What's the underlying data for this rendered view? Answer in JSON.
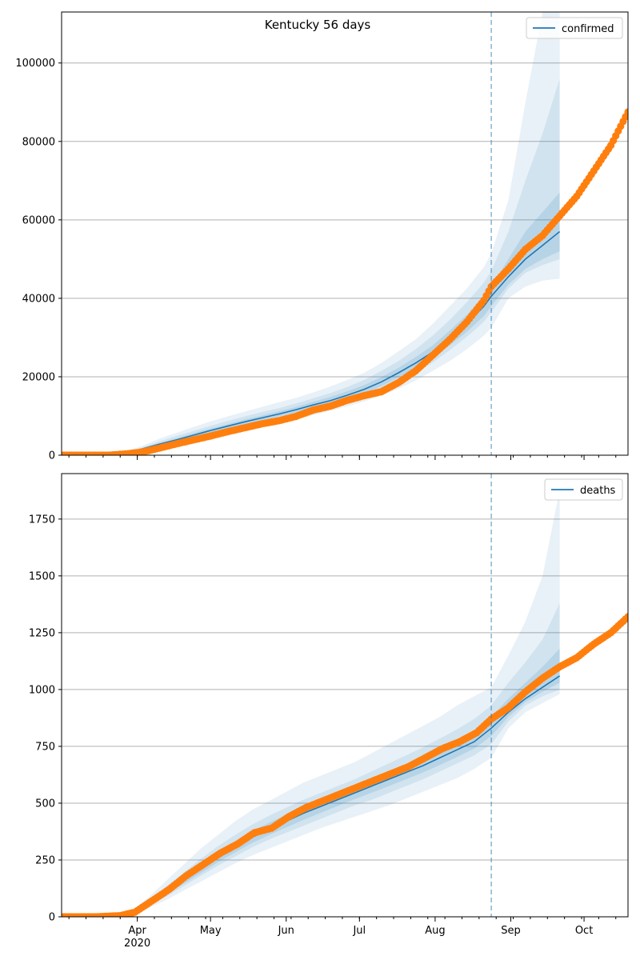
{
  "figure": {
    "title": "Kentucky 56 days"
  },
  "chart_data": [
    {
      "type": "line",
      "panel": "top",
      "ylim": [
        0,
        113000
      ],
      "yticks": [
        0,
        20000,
        40000,
        60000,
        80000,
        100000
      ],
      "grid": "horizontal",
      "legend": {
        "placement": "top-right",
        "label": "confirmed"
      },
      "series_colors": {
        "model": "#1f77b4",
        "observed": "#ff7f0e"
      },
      "vline_date": "2020-08-24",
      "x_range": [
        "2020-03-01",
        "2020-10-19"
      ],
      "x_tick_labels": [
        "Apr",
        "May",
        "Jun",
        "Jul",
        "Aug",
        "Sep",
        "Oct"
      ],
      "x_tick_dates": [
        "2020-04-01",
        "2020-05-01",
        "2020-06-01",
        "2020-07-01",
        "2020-08-01",
        "2020-09-01",
        "2020-10-01"
      ],
      "x_year_label": "2020",
      "model": {
        "x": [
          "2020-03-20",
          "2020-03-27",
          "2020-04-03",
          "2020-04-10",
          "2020-04-17",
          "2020-04-24",
          "2020-05-01",
          "2020-05-08",
          "2020-05-15",
          "2020-05-22",
          "2020-05-29",
          "2020-06-05",
          "2020-06-12",
          "2020-06-19",
          "2020-06-26",
          "2020-07-03",
          "2020-07-10",
          "2020-07-17",
          "2020-07-24",
          "2020-07-31",
          "2020-08-07",
          "2020-08-14",
          "2020-08-21",
          "2020-08-24",
          "2020-08-31",
          "2020-09-07",
          "2020-09-14",
          "2020-09-21"
        ],
        "y": [
          0,
          500,
          1600,
          2800,
          3900,
          5100,
          6300,
          7400,
          8500,
          9500,
          10500,
          11600,
          12800,
          13900,
          15300,
          16800,
          18700,
          21000,
          23500,
          26300,
          29800,
          33500,
          38000,
          40500,
          45500,
          50000,
          53500,
          57000
        ],
        "bands": [
          {
            "name": "outer",
            "upper": [
              0,
              900,
              2400,
              4200,
              5700,
              7200,
              8600,
              9900,
              11100,
              12300,
              13500,
              14600,
              16000,
              17500,
              19200,
              21000,
              23500,
              26500,
              29500,
              33500,
              38000,
              42500,
              48000,
              51500,
              65000,
              90000,
              113000,
              113000
            ],
            "lower": [
              0,
              200,
              900,
              1800,
              2700,
              3600,
              4500,
              5500,
              6500,
              7400,
              8300,
              9200,
              10200,
              11300,
              12500,
              13700,
              15200,
              17000,
              19000,
              21500,
              24000,
              27000,
              30500,
              32500,
              40000,
              43000,
              44500,
              45000
            ]
          },
          {
            "name": "middle",
            "upper": [
              0,
              700,
              2000,
              3500,
              4900,
              6200,
              7500,
              8700,
              9900,
              11000,
              12000,
              13200,
              14500,
              15800,
              17400,
              19200,
              21500,
              24000,
              27000,
              30500,
              34500,
              39000,
              44000,
              47000,
              57000,
              70000,
              82000,
              96000
            ],
            "lower": [
              0,
              300,
              1200,
              2200,
              3200,
              4200,
              5300,
              6300,
              7300,
              8300,
              9200,
              10200,
              11300,
              12400,
              13600,
              15000,
              16800,
              18800,
              21000,
              23600,
              26800,
              30200,
              34000,
              36500,
              42500,
              46500,
              48500,
              50000
            ]
          },
          {
            "name": "inner",
            "upper": [
              0,
              600,
              1800,
              3100,
              4300,
              5600,
              6800,
              7900,
              9100,
              10100,
              11200,
              12300,
              13600,
              14800,
              16300,
              17900,
              19900,
              22300,
              25000,
              28000,
              31800,
              35800,
              40500,
              43000,
              50000,
              57000,
              62000,
              67000
            ],
            "lower": [
              0,
              400,
              1400,
              2500,
              3500,
              4600,
              5800,
              6900,
              7900,
              8900,
              9900,
              10900,
              12000,
              13100,
              14400,
              15800,
              17600,
              19800,
              22100,
              24800,
              28000,
              31500,
              35500,
              38000,
              43500,
              47500,
              50000,
              52000
            ]
          }
        ]
      },
      "observed": {
        "x": [
          "2020-03-01",
          "2020-03-10",
          "2020-03-20",
          "2020-03-27",
          "2020-04-03",
          "2020-04-10",
          "2020-04-17",
          "2020-04-24",
          "2020-05-01",
          "2020-05-08",
          "2020-05-15",
          "2020-05-22",
          "2020-05-29",
          "2020-06-05",
          "2020-06-12",
          "2020-06-19",
          "2020-06-26",
          "2020-07-03",
          "2020-07-10",
          "2020-07-17",
          "2020-07-24",
          "2020-07-31",
          "2020-08-07",
          "2020-08-14",
          "2020-08-21",
          "2020-08-24",
          "2020-08-31",
          "2020-09-07",
          "2020-09-14",
          "2020-09-21",
          "2020-09-28",
          "2020-10-05",
          "2020-10-12",
          "2020-10-19"
        ],
        "y": [
          0,
          0,
          0,
          300,
          800,
          1800,
          2900,
          3900,
          4900,
          6000,
          7000,
          8000,
          8800,
          9900,
          11500,
          12500,
          14000,
          15200,
          16200,
          18500,
          21500,
          25500,
          29500,
          34000,
          39500,
          43000,
          47500,
          52500,
          56000,
          61000,
          66000,
          72500,
          79000,
          87500
        ]
      }
    },
    {
      "type": "line",
      "panel": "bottom",
      "ylim": [
        0,
        1950
      ],
      "yticks": [
        0,
        250,
        500,
        750,
        1000,
        1250,
        1500,
        1750
      ],
      "grid": "horizontal",
      "legend": {
        "placement": "top-right",
        "label": "deaths"
      },
      "series_colors": {
        "model": "#1f77b4",
        "observed": "#ff7f0e"
      },
      "vline_date": "2020-08-24",
      "x_range": [
        "2020-03-01",
        "2020-10-19"
      ],
      "x_tick_labels": [
        "Apr",
        "May",
        "Jun",
        "Jul",
        "Aug",
        "Sep",
        "Oct"
      ],
      "x_tick_dates": [
        "2020-04-01",
        "2020-05-01",
        "2020-06-01",
        "2020-07-01",
        "2020-08-01",
        "2020-09-01",
        "2020-10-01"
      ],
      "x_year_label": "2020",
      "model": {
        "x": [
          "2020-03-30",
          "2020-04-06",
          "2020-04-13",
          "2020-04-20",
          "2020-04-27",
          "2020-05-04",
          "2020-05-11",
          "2020-05-18",
          "2020-05-25",
          "2020-06-01",
          "2020-06-08",
          "2020-06-15",
          "2020-06-22",
          "2020-06-29",
          "2020-07-06",
          "2020-07-13",
          "2020-07-20",
          "2020-07-27",
          "2020-08-03",
          "2020-08-10",
          "2020-08-17",
          "2020-08-24",
          "2020-08-31",
          "2020-09-07",
          "2020-09-14",
          "2020-09-21"
        ],
        "y": [
          20,
          60,
          110,
          160,
          210,
          260,
          305,
          350,
          385,
          420,
          455,
          485,
          515,
          545,
          575,
          605,
          635,
          665,
          700,
          735,
          770,
          830,
          900,
          960,
          1010,
          1060
        ],
        "bands": [
          {
            "name": "outer",
            "upper": [
              30,
              90,
              160,
              230,
              300,
              360,
              420,
              470,
              510,
              550,
              590,
              620,
              650,
              680,
              720,
              760,
              800,
              840,
              880,
              930,
              970,
              1010,
              1150,
              1300,
              1500,
              1880
            ],
            "lower": [
              10,
              40,
              75,
              115,
              155,
              195,
              235,
              270,
              300,
              330,
              360,
              390,
              415,
              440,
              465,
              490,
              520,
              550,
              580,
              610,
              650,
              700,
              830,
              900,
              940,
              980
            ]
          },
          {
            "name": "middle",
            "upper": [
              25,
              75,
              135,
              195,
              255,
              310,
              360,
              405,
              445,
              480,
              515,
              545,
              575,
              605,
              640,
              675,
              710,
              745,
              785,
              825,
              870,
              930,
              1030,
              1120,
              1220,
              1380
            ],
            "lower": [
              15,
              50,
              90,
              135,
              180,
              225,
              265,
              305,
              340,
              370,
              400,
              430,
              460,
              490,
              515,
              545,
              575,
              605,
              640,
              675,
              710,
              760,
              860,
              930,
              970,
              1000
            ]
          },
          {
            "name": "inner",
            "upper": [
              22,
              67,
              122,
              177,
              232,
              284,
              332,
              377,
              414,
              449,
              484,
              514,
              544,
              574,
              606,
              638,
              670,
              702,
              740,
              778,
              818,
              880,
              960,
              1030,
              1100,
              1180
            ],
            "lower": [
              18,
              55,
              100,
              145,
              192,
              240,
              283,
              325,
              360,
              393,
              426,
              457,
              487,
              517,
              546,
              575,
              605,
              635,
              668,
              703,
              740,
              795,
              880,
              945,
              990,
              1030
            ]
          }
        ]
      },
      "observed": {
        "x": [
          "2020-03-01",
          "2020-03-15",
          "2020-03-25",
          "2020-03-31",
          "2020-04-07",
          "2020-04-14",
          "2020-04-21",
          "2020-04-28",
          "2020-05-05",
          "2020-05-12",
          "2020-05-19",
          "2020-05-26",
          "2020-06-02",
          "2020-06-09",
          "2020-06-16",
          "2020-06-23",
          "2020-06-30",
          "2020-07-07",
          "2020-07-14",
          "2020-07-21",
          "2020-07-28",
          "2020-08-04",
          "2020-08-11",
          "2020-08-18",
          "2020-08-24",
          "2020-08-31",
          "2020-09-07",
          "2020-09-14",
          "2020-09-21",
          "2020-09-28",
          "2020-10-05",
          "2020-10-12",
          "2020-10-19"
        ],
        "y": [
          0,
          0,
          5,
          20,
          70,
          120,
          180,
          230,
          280,
          320,
          370,
          390,
          440,
          480,
          510,
          540,
          570,
          600,
          630,
          660,
          700,
          740,
          770,
          810,
          870,
          920,
          990,
          1050,
          1100,
          1140,
          1200,
          1250,
          1320
        ]
      }
    }
  ]
}
